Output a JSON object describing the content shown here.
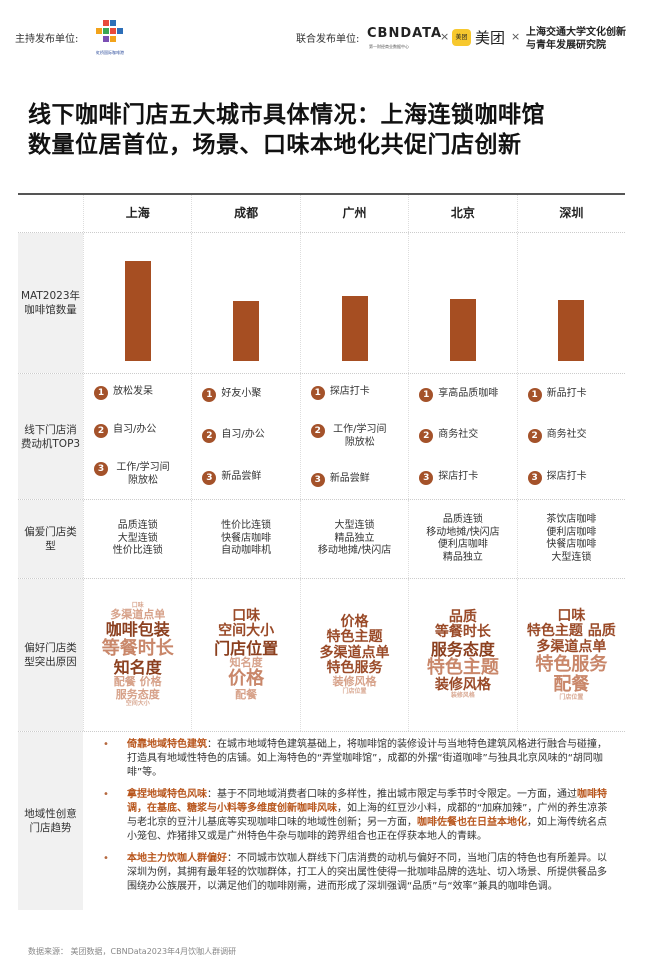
{
  "header": {
    "host_label": "主持发布单位:",
    "host_logo_text": "虹桥国际咖啡港",
    "co_label": "联合发布单位:",
    "cbn": "CBNDATA",
    "cbn_sub": "第一财经商业数据中心",
    "times": "×",
    "meituan_badge": "美团",
    "meituan": "美团",
    "sjtu": [
      "上海交通大学文化创新",
      "与青年发展研究院"
    ]
  },
  "title": [
    "线下咖啡门店五大城市具体情况：上海连锁咖啡馆",
    "数量位居首位，场景、口味本地化共促门店创新"
  ],
  "cities": [
    "上海",
    "成都",
    "广州",
    "北京",
    "深圳"
  ],
  "rows": {
    "mat_label": "MAT2023年咖啡馆数量",
    "motive_label": "线下门店消费动机TOP3",
    "type_label": "偏爱门店类型",
    "reason_label": "偏好门店类型突出原因",
    "trend_label": "地域性创意门店趋势"
  },
  "bar_color": "#a64e22",
  "mat_relative": [
    1.0,
    0.6,
    0.65,
    0.62,
    0.61
  ],
  "motives": [
    [
      "放松发呆",
      "自习/办公",
      "工作/学习间隙放松"
    ],
    [
      "好友小聚",
      "自习/办公",
      "新品尝鲜"
    ],
    [
      "探店打卡",
      "工作/学习间隙放松",
      "新品尝鲜"
    ],
    [
      "享高品质咖啡",
      "商务社交",
      "探店打卡"
    ],
    [
      "新品打卡",
      "商务社交",
      "探店打卡"
    ]
  ],
  "motive_nums": [
    "1",
    "2",
    "3"
  ],
  "types": [
    [
      "品质连锁",
      "大型连锁",
      "性价比连锁"
    ],
    [
      "性价比连锁",
      "快餐店咖啡",
      "自动咖啡机"
    ],
    [
      "大型连锁",
      "精品独立",
      "移动地摊/快闪店"
    ],
    [
      "品质连锁",
      "移动地摊/快闪店",
      "便利店咖啡",
      "精品独立"
    ],
    [
      "茶饮店咖啡",
      "便利店咖啡",
      "快餐店咖啡",
      "大型连锁"
    ]
  ],
  "clouds": [
    [
      {
        "t": "口味",
        "s": 5
      },
      {
        "t": "多渠道点单",
        "s": 4
      },
      {
        "t": "咖啡包装",
        "s": 2
      },
      {
        "t": "等餐时长",
        "s": 1
      },
      {
        "t": "知名度",
        "s": 2
      },
      {
        "t": "配餐 价格",
        "s": 4
      },
      {
        "t": "服务态度",
        "s": 4
      },
      {
        "t": "空间大小",
        "s": 5
      }
    ],
    [
      {
        "t": "口味",
        "s": 3
      },
      {
        "t": "空间大小",
        "s": 3
      },
      {
        "t": "门店位置",
        "s": 2
      },
      {
        "t": "知名度",
        "s": 4
      },
      {
        "t": "价格",
        "s": 1
      },
      {
        "t": "配餐",
        "s": 4
      }
    ],
    [
      {
        "t": "价格",
        "s": 3
      },
      {
        "t": "特色主题",
        "s": 3
      },
      {
        "t": "多渠道点单",
        "s": 3
      },
      {
        "t": "特色服务",
        "s": 3
      },
      {
        "t": "装修风格",
        "s": 4
      },
      {
        "t": "门店位置",
        "s": 5
      }
    ],
    [
      {
        "t": "品质",
        "s": 3
      },
      {
        "t": "等餐时长",
        "s": 3
      },
      {
        "t": "服务态度",
        "s": 2
      },
      {
        "t": "特色主题",
        "s": 1
      },
      {
        "t": "装修风格",
        "s": 3
      },
      {
        "t": "装修风格",
        "s": 5
      }
    ],
    [
      {
        "t": "口味",
        "s": 3
      },
      {
        "t": "特色主题 品质",
        "s": 3
      },
      {
        "t": "多渠道点单",
        "s": 3
      },
      {
        "t": "特色服务",
        "s": 1
      },
      {
        "t": "配餐",
        "s": 1
      },
      {
        "t": "门店位置",
        "s": 5
      }
    ]
  ],
  "trends": [
    {
      "hl": "倚靠地域特色建筑",
      "text": "：在城市地域特色建筑基础上，将咖啡馆的装修设计与当地特色建筑风格进行融合与碰撞，打造具有地域性特色的店铺。如上海特色的“弄堂咖啡馆”，成都的外摆“街道咖啡”与独具北京风味的“胡同咖啡”等。"
    },
    {
      "hl": "拿捏地域特色风味",
      "text": "：基于不同地域消费者口味的多样性，推出城市限定与季节时令限定。一方面，通过",
      "hl2": "咖啡特调，在基底、糖浆与小料等多维度创新咖啡风味",
      "text2": "，如上海的红豆沙小料，成都的“加麻加辣”，广州的养生凉茶与老北京的豆汁儿基底等实现咖啡口味的地域性创新；另一方面，",
      "hl3": "咖啡佐餐也在日益本地化",
      "text3": "，如上海传统名点小笼包、炸猪排又或是广州特色牛杂与咖啡的跨界组合也正在俘获本地人的青睐。"
    },
    {
      "hl": "本地主力饮咖人群偏好",
      "text": "：不同城市饮咖人群线下门店消费的动机与偏好不同，当地门店的特色也有所差异。以深圳为例，其拥有最年轻的饮咖群体，打工人的突出属性使得一批咖啡品牌的选址、切入场景、所提供餐品多围绕办公族展开，以满足他们的咖啡刚需，进而形成了深圳强调“品质”与“效率”兼具的咖啡色调。"
    }
  ],
  "footer": "数据来源： 美团数据，CBNData2023年4月饮咖人群调研"
}
